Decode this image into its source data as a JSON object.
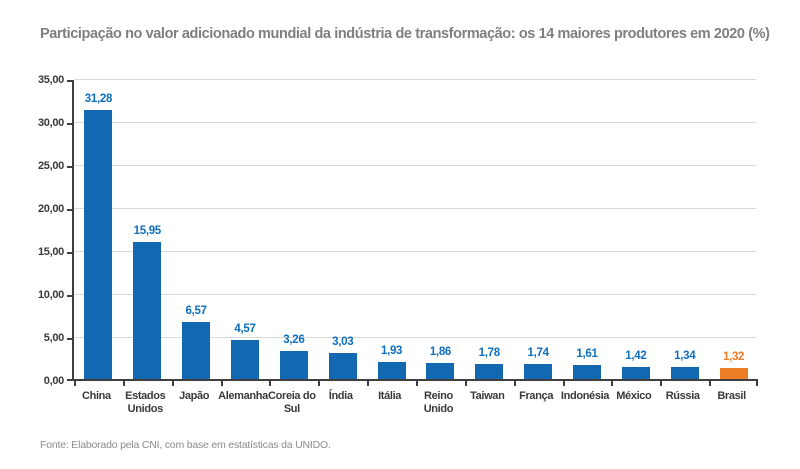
{
  "title": "Participação no valor adicionado mundial da indústria de transformação: os 14 maiores produtores em 2020 (%)",
  "source": "Fonte: Elaborado pela CNI, com base em estatísticas da UNIDO.",
  "colors": {
    "bar_default": "#1268b1",
    "bar_highlight": "#ee7d28",
    "value_label_default": "#0d6ebd",
    "value_label_highlight": "#ee7d28",
    "gridline": "#d9d9d9",
    "axis": "#3f3f3f",
    "title_text": "#7f7f7f",
    "source_text": "#8c8c8c",
    "tick_label": "#3a3a3a"
  },
  "chart_data": {
    "type": "bar",
    "title": "Participação no valor adicionado mundial da indústria de transformação: os 14 maiores produtores em 2020 (%)",
    "xlabel": "",
    "ylabel": "",
    "categories": [
      "China",
      "Estados Unidos",
      "Japão",
      "Alemanha",
      "Coreia do Sul",
      "Índia",
      "Itália",
      "Reino Unido",
      "Taiwan",
      "França",
      "Indonésia",
      "México",
      "Rússia",
      "Brasil"
    ],
    "values": [
      31.28,
      15.95,
      6.57,
      4.57,
      3.26,
      3.03,
      1.93,
      1.86,
      1.78,
      1.74,
      1.61,
      1.42,
      1.34,
      1.32
    ],
    "value_labels": [
      "31,28",
      "15,95",
      "6,57",
      "4,57",
      "3,26",
      "3,03",
      "1,93",
      "1,86",
      "1,78",
      "1,74",
      "1,61",
      "1,42",
      "1,34",
      "1,32"
    ],
    "highlight_index": 13,
    "y_ticks": [
      "0,00",
      "5,00",
      "10,00",
      "15,00",
      "20,00",
      "25,00",
      "30,00",
      "35,00"
    ],
    "y_tick_values": [
      0,
      5,
      10,
      15,
      20,
      25,
      30,
      35
    ],
    "ylim": [
      0,
      35
    ],
    "grid": true,
    "legend_position": "none"
  }
}
